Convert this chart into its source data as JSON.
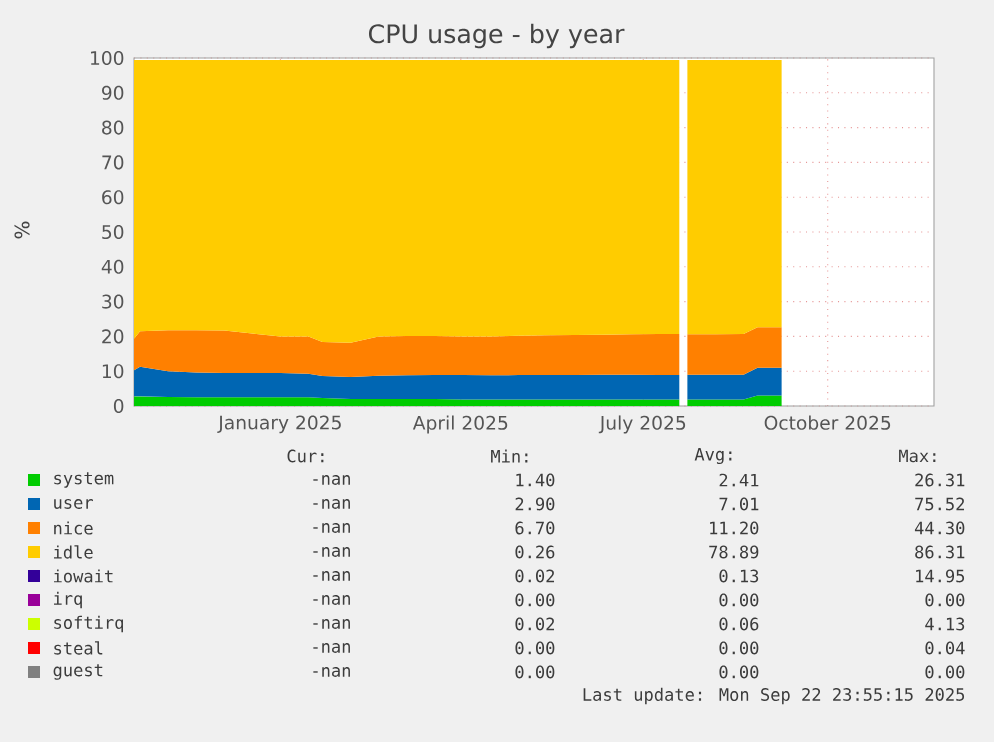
{
  "chart_data": {
    "type": "area",
    "stacked": true,
    "title": "CPU usage - by year",
    "ylabel": "%",
    "x": [
      "2024-11-03",
      "2024-11-06",
      "2024-11-20",
      "2024-12-04",
      "2024-12-18",
      "2025-01-01",
      "2025-01-15",
      "2025-01-29",
      "2025-02-05",
      "2025-02-19",
      "2025-03-05",
      "2025-03-19",
      "2025-04-02",
      "2025-04-16",
      "2025-04-30",
      "2025-05-14",
      "2025-05-28",
      "2025-06-11",
      "2025-06-25",
      "2025-07-09",
      "2025-07-23",
      "2025-08-02",
      "2025-08-04",
      "2025-08-06",
      "2025-08-20",
      "2025-09-03",
      "2025-09-10",
      "2025-09-22"
    ],
    "series": [
      {
        "name": "system",
        "color": "#00cc00",
        "values": [
          2.8,
          2.8,
          2.6,
          2.5,
          2.5,
          2.5,
          2.5,
          2.5,
          2.3,
          2.0,
          2.0,
          2.0,
          2.0,
          1.9,
          1.9,
          1.9,
          1.9,
          1.9,
          1.9,
          1.9,
          1.9,
          1.9,
          null,
          1.9,
          1.9,
          1.9,
          3.0,
          3.0
        ]
      },
      {
        "name": "user",
        "color": "#0066b3",
        "values": [
          7.5,
          8.5,
          7.4,
          7.1,
          7.0,
          7.0,
          7.0,
          6.8,
          6.3,
          6.3,
          6.7,
          6.8,
          6.9,
          7.0,
          6.9,
          7.0,
          7.0,
          7.0,
          7.1,
          7.1,
          7.0,
          7.0,
          null,
          7.1,
          7.1,
          7.1,
          8.0,
          8.0
        ]
      },
      {
        "name": "nice",
        "color": "#ff8000",
        "values": [
          9.0,
          10.2,
          11.8,
          12.2,
          12.2,
          11.3,
          10.5,
          10.7,
          9.8,
          9.9,
          11.3,
          11.3,
          11.2,
          11.1,
          11.2,
          11.3,
          11.4,
          11.5,
          11.5,
          11.6,
          11.8,
          11.8,
          null,
          11.6,
          11.6,
          11.7,
          11.6,
          11.6
        ]
      },
      {
        "name": "idle",
        "color": "#ffcc00",
        "values": [
          80.1,
          77.9,
          77.6,
          77.6,
          77.7,
          78.6,
          79.4,
          79.4,
          81.0,
          81.2,
          79.4,
          79.3,
          79.3,
          79.4,
          79.4,
          79.2,
          79.1,
          79.0,
          78.9,
          78.8,
          78.7,
          78.7,
          null,
          78.8,
          78.8,
          78.7,
          76.8,
          76.8
        ]
      },
      {
        "name": "iowait",
        "color": "#330099",
        "values": [
          null,
          null,
          null,
          null,
          null,
          null,
          null,
          null,
          null,
          null,
          null,
          null,
          null,
          null,
          null,
          null,
          null,
          null,
          null,
          null,
          null,
          null,
          null,
          null,
          null,
          null,
          null,
          null
        ]
      },
      {
        "name": "irq",
        "color": "#990099",
        "values": [
          null,
          null,
          null,
          null,
          null,
          null,
          null,
          null,
          null,
          null,
          null,
          null,
          null,
          null,
          null,
          null,
          null,
          null,
          null,
          null,
          null,
          null,
          null,
          null,
          null,
          null,
          null,
          null
        ]
      },
      {
        "name": "softirq",
        "color": "#ccff00",
        "values": [
          null,
          null,
          null,
          null,
          null,
          null,
          null,
          null,
          null,
          null,
          null,
          null,
          null,
          null,
          null,
          null,
          null,
          null,
          null,
          null,
          null,
          null,
          null,
          null,
          null,
          null,
          null,
          null
        ]
      },
      {
        "name": "steal",
        "color": "#ff0000",
        "values": [
          null,
          null,
          null,
          null,
          null,
          null,
          null,
          null,
          null,
          null,
          null,
          null,
          null,
          null,
          null,
          null,
          null,
          null,
          null,
          null,
          null,
          null,
          null,
          null,
          null,
          null,
          null,
          null
        ]
      },
      {
        "name": "guest",
        "color": "#808080",
        "values": [
          null,
          null,
          null,
          null,
          null,
          null,
          null,
          null,
          null,
          null,
          null,
          null,
          null,
          null,
          null,
          null,
          null,
          null,
          null,
          null,
          null,
          null,
          null,
          null,
          null,
          null,
          null,
          null
        ]
      }
    ],
    "xlim": [
      "2024-11-03",
      "2025-12-07"
    ],
    "xticks": [
      {
        "value": "2025-01-15",
        "label": "January 2025"
      },
      {
        "value": "2025-04-15",
        "label": "April 2025"
      },
      {
        "value": "2025-07-15",
        "label": "July 2025"
      },
      {
        "value": "2025-10-15",
        "label": "October 2025"
      }
    ],
    "ylim": [
      0,
      100
    ],
    "yticks": [
      0,
      10,
      20,
      30,
      40,
      50,
      60,
      70,
      80,
      90,
      100
    ],
    "grid": true,
    "legend": "bottom",
    "annotations": [
      "Cur:",
      "Min:",
      "Avg:",
      "Max:",
      "-nan",
      "1.40",
      "2.41",
      "26.31",
      "-nan",
      "2.90",
      "7.01",
      "75.52",
      "-nan",
      "6.70",
      "11.20",
      "44.30",
      "-nan",
      "0.26",
      "78.89",
      "86.31",
      "-nan",
      "0.02",
      "0.13",
      "14.95",
      "-nan",
      "0.00",
      "0.00",
      "0.00",
      "-nan",
      "0.02",
      "0.06",
      "4.13",
      "-nan",
      "0.00",
      "0.00",
      "0.04",
      "-nan",
      "0.00",
      "0.00",
      "0.00",
      "Last update: Mon Sep 22 23:55:15 2025"
    ]
  }
}
